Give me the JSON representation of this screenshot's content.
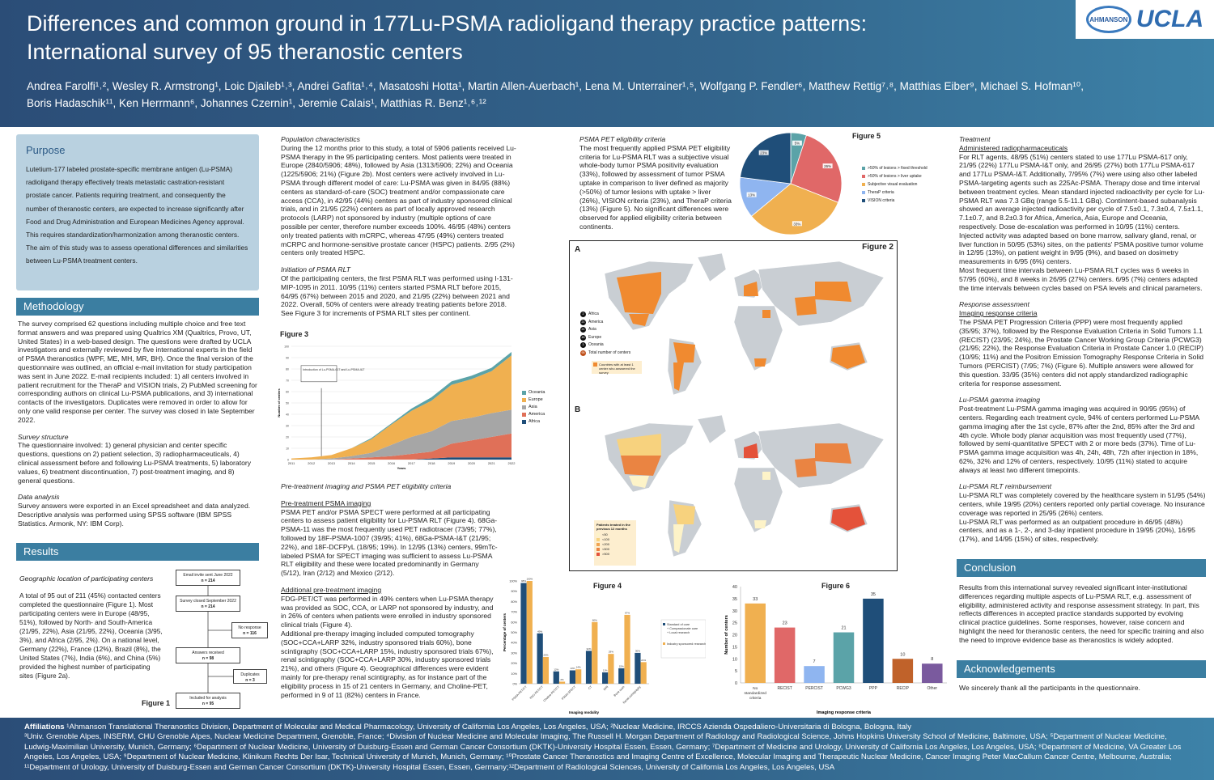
{
  "header": {
    "title_line1": "Differences and common ground in 177Lu-PSMA radioligand therapy practice patterns:",
    "title_line2": "International survey of 95 theranostic centers",
    "authors_line1": "Andrea Farolfi¹˒², Wesley R. Armstrong¹, Loic Djaileb¹˒³, Andrei Gafita¹˒⁴, Masatoshi Hotta¹, Martin Allen-Auerbach¹, Lena M. Unterrainer¹˒⁵, Wolfgang P. Fendler⁶, Matthew Rettig⁷˒⁸, Matthias Eiber⁹, Michael S. Hofman¹⁰,",
    "authors_line2": "Boris Hadaschik¹¹, Ken Herrmann⁶, Johannes Czernin¹, Jeremie Calais¹, Matthias R. Benz¹˒⁶˒¹²",
    "logo_small": "AHMANSON",
    "logo_big": "UCLA"
  },
  "purpose": {
    "heading": "Purpose",
    "text": "Lutetium-177 labeled prostate-specific membrane antigen (Lu-PSMA) radioligand therapy effectively treats metastatic castration-resistant prostate cancer. Patients requiring treatment, and consequently the number of theranostic centers, are expected to increase significantly after Food and Drug Administration and European Medicines Agency approval. This requires standardization/harmonization among theranostic centers. The aim of this study was to assess operational differences and similarities between Lu-PSMA treatment centers."
  },
  "methodology": {
    "heading": "Methodology",
    "text": "The survey comprised 62 questions including multiple choice and free text format answers and was prepared using Qualtrics XM (Qualtrics, Provo, UT, United States) in a web-based design. The questions were drafted by UCLA investigators and externally reviewed by five international experts in the field of PSMA theranostics (WPF, ME, MH, MR, BH). Once the final version of the questionnaire was outlined, an official e-mail invitation for study participation was sent in June 2022. E-mail recipients included: 1) all centers involved in patient recruitment for the TheraP and VISION trials, 2) PubMed screening for corresponding authors on clinical Lu-PSMA publications, and 3) international contacts of the investigators. Duplicates were removed in order to allow for only one valid response per center. The survey was closed in late September 2022.",
    "survey_heading": "Survey structure",
    "survey_text": "The questionnaire involved: 1) general physician and center specific questions, questions on 2) patient selection, 3) radiopharmaceuticals, 4) clinical assessment before and following Lu-PSMA treatments, 5) laboratory values, 6) treatment discontinuation, 7) post-treatment imaging, and 8) general questions.",
    "analysis_heading": "Data analysis",
    "analysis_text": "Survey answers were exported in an Excel spreadsheet and data analyzed. Descriptive analysis was performed using SPSS software (IBM SPSS Statistics. Armonk, NY: IBM Corp)."
  },
  "results": {
    "heading": "Results",
    "geo_heading": "Geographic location of participating centers",
    "geo_text": "A total of 95 out of 211 (45%) contacted centers completed the questionnaire (Figure 1). Most participating centers were in Europe (48/95, 51%), followed by North- and South-America (21/95, 22%), Asia (21/95, 22%), Oceania (3/95, 3%), and Africa (2/95, 2%). On a national level, Germany (22%), France (12%), Brazil (8%), the United States (7%), India (6%), and China (5%) provided the highest number of participating sites (Figure 2a).",
    "pop_heading": "Population characteristics",
    "pop_text": "During the 12 months prior to this study, a total of 5906 patients received Lu-PSMA therapy in the 95 participating centers. Most patients were treated in Europe (2840/5906; 48%), followed by Asia (1313/5906; 22%) and Oceania (1225/5906; 21%) (Figure 2b). Most centers were actively involved in Lu-PSMA through different model of care: Lu-PSMA was given in 84/95 (88%) centers as standard-of-care (SOC) treatment and/or compassionate care access (CCA), in 42/95 (44%) centers as part of industry sponsored clinical trials, and in 21/95 (22%) centers as part of locally approved research protocols (LARP) not sponsored by industry (multiple options of care possible per center, therefore number exceeds 100%. 46/95 (48%) centers only treated patients with mCRPC, whereas 47/95 (49%) centers treated mCRPC and hormone-sensitive prostate cancer (HSPC) patients. 2/95 (2%) centers only treated HSPC.",
    "init_heading": "Initiation of PSMA RLT",
    "init_text": "Of the participating centers, the first PSMA RLT was performed using I-131-MIP-1095 in 2011. 10/95 (11%) centers started PSMA RLT before 2015, 64/95 (67%) between 2015 and 2020, and 21/95 (22%) between 2021 and 2022. Overall, 50% of centers were already treating patients before 2018. See Figure 3 for increments of PSMA RLT sites per continent.",
    "pretx_heading": "Pre-treatment imaging and PSMA PET eligibility criteria",
    "pretx_sub1": "Pre-treatment PSMA imaging",
    "pretx_text1": "PSMA PET and/or PSMA SPECT were performed at all participating centers to assess patient eligibility for Lu-PSMA RLT (Figure 4). 68Ga-PSMA-11 was the most frequently used PET radiotracer (73/95; 77%), followed by 18F-PSMA-1007 (39/95; 41%), 68Ga-PSMA-I&T (21/95; 22%), and 18F-DCFPyL (18/95; 19%). In 12/95 (13%) centers, 99mTc-labeled PSMA for SPECT imaging was sufficient to assess Lu-PSMA RLT eligibility and these were located predominantly in Germany (5/12), Iran (2/12) and Mexico (2/12).",
    "pretx_sub2": "Additional pre-treatment imaging",
    "pretx_text2": "FDG-PET/CT was performed in 49% centers when Lu-PSMA therapy was provided as SOC, CCA, or LARP not sponsored by industry, and in 26% of centers when patients were enrolled in industry sponsored clinical trials (Figure 4).",
    "pretx_text3": "Additional pre-therapy imaging included computed tomography (SOC+CCA+LARP 32%, industry sponsored trials 60%), bone scintigraphy (SOC+CCA+LARP 15%, industry sponsored trials 67%), renal scintigraphy (SOC+CCA+LARP 30%, industry sponsored trials 21%), and others (Figure 4). Geographical differences were evident mainly for pre-therapy renal scintigraphy, as for instance part of the eligibility process in 15 of 21 centers in Germany, and Choline-PET, performed in 9 of 11 (82%) centers in France.",
    "elig_heading": "PSMA PET eligibility criteria",
    "elig_text": "The most frequently applied PSMA PET eligibility criteria for Lu-PSMA RLT was a subjective visual whole-body tumor PSMA positivity evaluation (33%), followed by assessment of tumor PSMA uptake in comparison to liver defined as majority (>50%) of tumor lesions with uptake > liver (26%), VISION criteria (23%), and TheraP criteria (13%) (Figure 5). No significant differences were observed for applied eligibility criteria between continents.",
    "treat_heading": "Treatment",
    "treat_sub": "Administered radiopharmaceuticals",
    "treat_text1": "For RLT agents, 48/95 (51%) centers stated to use 177Lu PSMA-617 only, 21/95 (22%) 177Lu PSMA-I&T only, and 26/95 (27%) both 177Lu PSMA-617 and 177Lu PSMA-I&T. Additionally, 7/95% (7%) were using also other labeled PSMA-targeting agents such as 225Ac-PSMA. Therapy dose and time interval between treatment cycles. Mean standard injected radioactivity per cycle for Lu-PSMA RLT was 7.3 GBq (range 5.5-11.1 GBq). Contintent-based subanalysis showed an average injected radioactivity per cycle of 7.5±0.1, 7.3±0.4, 7.5±1.1, 7.1±0.7, and 8.2±0.3 for Africa, America, Asia, Europe and Oceania, respectively. Dose de-escalation was performed in 10/95 (11%) centers. Injected activity was adapted based on bone marrow, salivary gland, renal, or liver function in 50/95 (53%) sites, on the patients' PSMA positive tumor volume in 12/95 (13%), on patient weight in 9/95 (9%), and based on dosimetry measurements in 6/95 (6%) centers.",
    "treat_text2": "Most frequent time intervals between Lu-PSMA RLT cycles was 6 weeks in 57/95 (60%), and 8 weeks in 26/95 (27%) centers. 6/95 (7%) centers adapted the time intervals between cycles based on PSA levels and clinical parameters.",
    "resp_heading": "Response assessment",
    "resp_sub": "Imaging response criteria",
    "resp_text": "The PSMA PET Progression Criteria (PPP) were most frequently applied (35/95; 37%), followed by the Response Evaluation Criteria in Solid Tumors 1.1 (RECIST) (23/95; 24%), the Prostate Cancer Working Group Criteria (PCWG3) (21/95; 22%), the Response Evaluation Criteria in Prostate Cancer 1.0 (RECIP) (10/95; 11%) and the Positron Emission Tomography Response Criteria in Solid Tumors (PERCIST) (7/95; 7%) (Figure 6). Multiple answers were allowed for this question. 33/95 (35%) centers did not apply standardized radiographic criteria for response assessment.",
    "gamma_heading": "Lu-PSMA gamma imaging",
    "gamma_text": "Post-treatment Lu-PSMA gamma imaging was acquired in 90/95 (95%) of centers. Regarding each treatment cycle, 94% of centers performed Lu-PSMA gamma imaging after the 1st cycle, 87% after the 2nd, 85% after the 3rd and 4th cycle. Whole body planar acquisition was most frequently used (77%), followed by semi-quantitative SPECT with 2 or more beds (37%). Time of Lu-PSMA gamma image acquisition was 4h, 24h, 48h, 72h after injection in 18%, 62%, 32% and 12% of centers, respectively. 10/95 (11%) stated to acquire always at least two different timepoints.",
    "reimb_heading": "Lu-PSMA RLT reimbursement",
    "reimb_text1": "Lu-PSMA RLT was completely covered by the healthcare system in 51/95 (54%) centers, while 19/95 (20%) centers reported only partial coverage. No insurance coverage was reported in 25/95 (26%) centers.",
    "reimb_text2": "Lu-PSMA RLT was performed as an outpatient procedure in 46/95 (48%) centers, and as a 1-, 2-, and 3-day inpatient procedure in 19/95 (20%), 16/95 (17%), and 14/95 (15%) of sites, respectively."
  },
  "conclusion": {
    "heading": "Conclusion",
    "text": "Results from this international survey revealed significant inter-institutional differences regarding multiple aspects of Lu-PSMA RLT, e.g. assessment of eligibility, administered activity and response assessment strategy. In part, this reflects differences in accepted practice standards supported by evolving clinical practice guidelines. Some responses, however, raise concern and highlight the need for theranostic centers, the need for specific training and also the need to improve evidence base as theranostics is widely adopted."
  },
  "acknowledgements": {
    "heading": "Acknowledgements",
    "text": "We sincerely thank all the participants in the questionnaire."
  },
  "figure1": {
    "label": "Figure 1",
    "boxes": [
      {
        "text": "Email invite sent June 2022",
        "n": "n = 214"
      },
      {
        "text": "Survey closed September 2022",
        "n": "n = 214"
      },
      {
        "text": "No response",
        "n": "n = 116"
      },
      {
        "text": "Answers received",
        "n": "n = 98"
      },
      {
        "text": "Duplicates",
        "n": "n = 3"
      },
      {
        "text": "Included for analysis",
        "n": "n = 95"
      }
    ]
  },
  "figure2": {
    "label": "Figure 2",
    "panel_a": "A",
    "panel_b": "B",
    "legend_a": [
      {
        "n": "2",
        "label": "Africa"
      },
      {
        "n": "21",
        "label": "America"
      },
      {
        "n": "21",
        "label": "Asia"
      },
      {
        "n": "48",
        "label": "Europe"
      },
      {
        "n": "3",
        "label": "Oceania"
      },
      {
        "n": "95",
        "label": "Total number of centers"
      }
    ],
    "countries_note": "Countries with at least 1 center who answered the survey",
    "legend_b_title": "Patients treated in the previous 12 months",
    "legend_b": [
      "<50",
      "<100",
      "<200",
      "<500",
      ">500"
    ],
    "legend_b_colors": [
      "#fdf3c8",
      "#f7d27e",
      "#f1a451",
      "#ea8442",
      "#e4523a"
    ]
  },
  "chart_data": [
    {
      "id": "figure3",
      "type": "area",
      "title": "Figure 3",
      "xlabel": "Years",
      "ylabel": "Number of centers",
      "x": [
        2011,
        2012,
        2013,
        2014,
        2015,
        2016,
        2017,
        2018,
        2019,
        2020,
        2021,
        2022
      ],
      "ylim": [
        0,
        100
      ],
      "yticks": [
        0,
        10,
        20,
        30,
        40,
        50,
        60,
        70,
        80,
        90,
        100
      ],
      "annotation": "Introduction of Lu-PSMA-617 and Lu-PSMA-I&T",
      "annotation_x": 2012.5,
      "series": [
        {
          "name": "Africa",
          "color": "#1f4e79",
          "values": [
            0,
            0,
            0,
            0,
            0,
            0,
            0,
            1,
            2,
            2,
            2,
            2
          ]
        },
        {
          "name": "America",
          "color": "#e07058",
          "values": [
            0,
            0,
            0,
            1,
            2,
            3,
            5,
            6,
            12,
            15,
            18,
            21
          ]
        },
        {
          "name": "Asia",
          "color": "#a6a6a6",
          "values": [
            0,
            0,
            1,
            2,
            4,
            10,
            15,
            18,
            20,
            20,
            21,
            21
          ]
        },
        {
          "name": "Europe",
          "color": "#f0b050",
          "values": [
            1,
            2,
            3,
            7,
            12,
            18,
            23,
            27,
            32,
            34,
            37,
            48
          ]
        },
        {
          "name": "Oceania",
          "color": "#5ba3a8",
          "values": [
            0,
            0,
            0,
            0,
            1,
            1,
            2,
            3,
            3,
            3,
            3,
            3
          ]
        }
      ],
      "legend": "right"
    },
    {
      "id": "figure4",
      "type": "bar",
      "title": "Figure 4",
      "xlabel": "Imaging modality",
      "ylabel": "Percentage of centers",
      "categories": [
        "PSMA-PET/CT",
        "FDG-PET/CT",
        "Choline-PET/CT",
        "PSMA SPECT",
        "CT",
        "MRI",
        "Bone scan",
        "Renal scintigraphy"
      ],
      "ylim": [
        0,
        100
      ],
      "yticks": [
        "0%",
        "10%",
        "20%",
        "30%",
        "40%",
        "50%",
        "60%",
        "70%",
        "80%",
        "90%",
        "100%"
      ],
      "series": [
        {
          "name": "Standard of care + Compassionate care + Local research",
          "color": "#1f4e79",
          "values": [
            98,
            49,
            12,
            13,
            32,
            11,
            15,
            30
          ]
        },
        {
          "name": "Industry sponsored research",
          "color": "#f0b050",
          "values": [
            100,
            26,
            2,
            14,
            60,
            29,
            67,
            21
          ]
        }
      ],
      "legend": "right"
    },
    {
      "id": "figure5",
      "type": "pie",
      "title": "Figure 5",
      "slices": [
        {
          "label": ">50% of lesions > fixed threshold",
          "value": 5,
          "color": "#5ba3a8"
        },
        {
          "label": ">50% of lesions > liver uptake",
          "value": 26,
          "color": "#e06868"
        },
        {
          "label": "Subjective visual evaluation",
          "value": 33,
          "color": "#f0b050"
        },
        {
          "label": "TheraP criteria",
          "value": 13,
          "color": "#8fb5f0"
        },
        {
          "label": "VISION criteria",
          "value": 23,
          "color": "#1f4e79"
        }
      ],
      "legend": "right"
    },
    {
      "id": "figure6",
      "type": "bar",
      "title": "Figure 6",
      "xlabel": "Imaging response criteria",
      "ylabel": "Number of centers",
      "categories": [
        "No standardized criteria",
        "RECIST",
        "PERCIST",
        "PCWG3",
        "PPP",
        "RECIP",
        "Other"
      ],
      "values": [
        33,
        23,
        7,
        21,
        35,
        10,
        8
      ],
      "colors": [
        "#f0b050",
        "#e06868",
        "#8fb5f0",
        "#5ba3a8",
        "#1f4e79",
        "#c0622a",
        "#7a5a9e"
      ],
      "ylim": [
        0,
        40
      ],
      "yticks": [
        0,
        5,
        10,
        15,
        20,
        25,
        30,
        35,
        40
      ]
    }
  ],
  "affiliations": {
    "label": "Affiliations",
    "line1": "¹Ahmanson Translational Theranostics Division, Department of Molecular and Medical Pharmacology, University of California Los Angeles, Los Angeles, USA; ²Nuclear Medicine, IRCCS Azienda Ospedaliero-Universitaria di Bologna, Bologna, Italy",
    "line2": "³Univ. Grenoble Alpes, INSERM, CHU Grenoble Alpes, Nuclear Medicine Department, Grenoble, France; ⁴Division of Nuclear Medicine and Molecular Imaging, The Russell H. Morgan Department of Radiology and Radiological Science, Johns Hopkins University School of Medicine, Baltimore, USA; ⁵Department of Nuclear Medicine, Ludwig-Maximilian University, Munich, Germany; ⁶Department of Nuclear Medicine, University of Duisburg-Essen and German Cancer Consortium (DKTK)-University Hospital Essen, Essen, Germany; ⁷Department of Medicine and Urology, University of California Los Angeles, Los Angeles, USA; ⁸Department of Medicine, VA Greater Los Angeles, Los Angeles, USA; ⁹Department of Nuclear Medicine, Klinikum Rechts Der Isar, Technical University of Munich, Munich, Germany; ¹⁰Prostate Cancer Theranostics and Imaging Centre of Excellence, Molecular Imaging and Therapeutic Nuclear Medicine, Cancer Imaging Peter MacCallum Cancer Centre, Melbourne, Australia; ¹¹Department of Urology, University of Duisburg-Essen and German Cancer Consortium (DKTK)-University Hospital Essen, Essen, Germany;¹²Department of Radiological Sciences, University of California Los Angeles, Los Angeles, USA"
  }
}
